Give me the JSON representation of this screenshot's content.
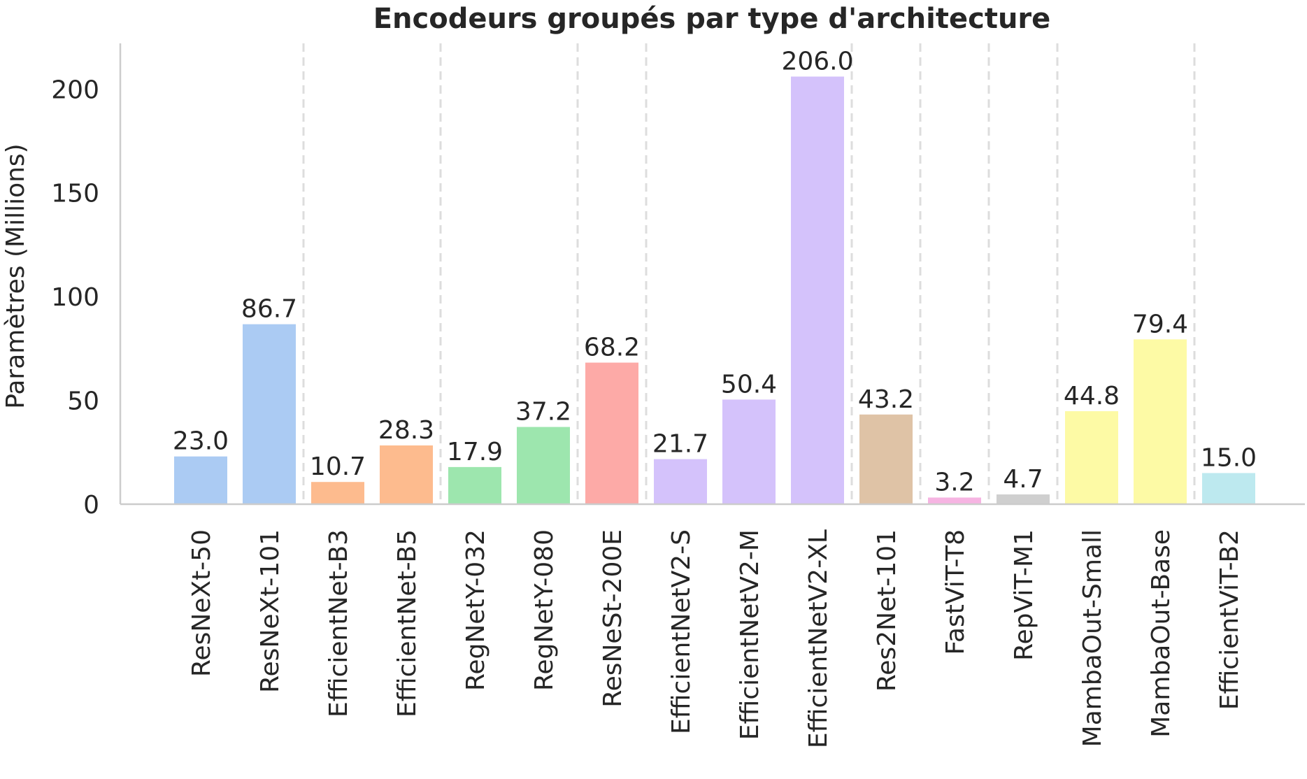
{
  "chart_data": {
    "type": "bar",
    "title": "Encodeurs groupés par type d'architecture",
    "xlabel": "",
    "ylabel": "Paramètres (Millions)",
    "ylim": [
      0,
      222
    ],
    "yticks": [
      0,
      50,
      100,
      150,
      200
    ],
    "grid": false,
    "group_separators": "dashed vertical lines between architecture groups",
    "categories": [
      "ResNeXt-50",
      "ResNeXt-101",
      "EfficientNet-B3",
      "EfficientNet-B5",
      "RegNetY-032",
      "RegNetY-080",
      "ResNeSt-200E",
      "EfficientNetV2-S",
      "EfficientNetV2-M",
      "EfficientNetV2-XL",
      "Res2Net-101",
      "FastViT-T8",
      "RepViT-M1",
      "MambaOut-Small",
      "MambaOut-Base",
      "EfficientViT-B2"
    ],
    "values": [
      23.0,
      86.7,
      10.7,
      28.3,
      17.9,
      37.2,
      68.2,
      21.7,
      50.4,
      206.0,
      43.2,
      3.2,
      4.7,
      44.8,
      79.4,
      15.0
    ],
    "value_labels": [
      "23.0",
      "86.7",
      "10.7",
      "28.3",
      "17.9",
      "37.2",
      "68.2",
      "21.7",
      "50.4",
      "206.0",
      "43.2",
      "3.2",
      "4.7",
      "44.8",
      "79.4",
      "15.0"
    ],
    "colors": [
      "#abcbf3",
      "#abcbf3",
      "#fdbb8e",
      "#fdbb8e",
      "#9de6ae",
      "#9de6ae",
      "#fdaaa7",
      "#d4c2fb",
      "#d4c2fb",
      "#d4c2fb",
      "#dfc3a6",
      "#f6b4e2",
      "#cfcfcf",
      "#fdfaa5",
      "#fdfaa5",
      "#bde9ef"
    ],
    "separators_after_index": [
      1,
      3,
      5,
      6,
      9,
      10,
      11,
      12,
      14
    ]
  }
}
